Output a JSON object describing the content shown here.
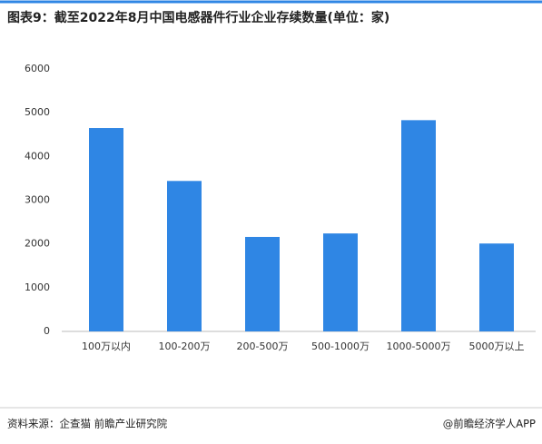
{
  "chart_data": {
    "type": "bar",
    "title": "图表9：截至2022年8月中国电感器件行业企业存续数量(单位：家)",
    "categories": [
      "100万以内",
      "100-200万",
      "200-500万",
      "500-1000万",
      "1000-5000万",
      "5000万以上"
    ],
    "values": [
      4650,
      3440,
      2160,
      2240,
      4830,
      2010
    ],
    "color": "#2f86e4",
    "ylim": [
      0,
      6000
    ],
    "yticks": [
      0,
      1000,
      2000,
      3000,
      4000,
      5000,
      6000
    ],
    "grid": false,
    "source": "资料来源：企查猫 前瞻产业研究院",
    "credit": "@前瞻经济学人APP"
  }
}
